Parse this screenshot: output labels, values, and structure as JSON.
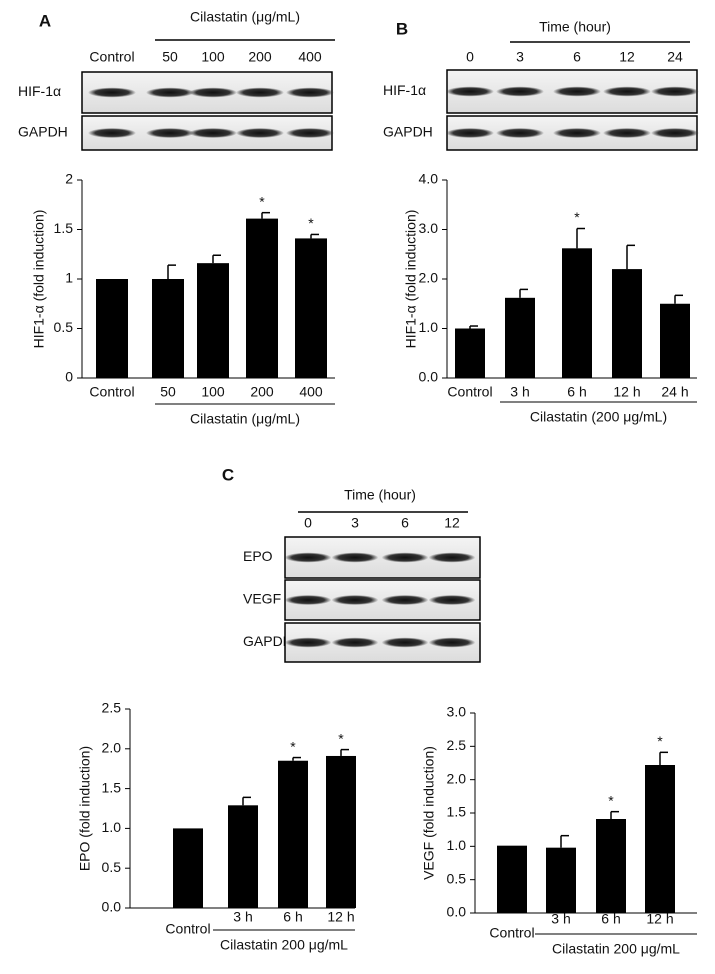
{
  "blots": [
    {
      "panel": "A",
      "header": "Cilastatin (μg/mL)",
      "lanes": [
        "Control",
        "50",
        "100",
        "200",
        "400"
      ],
      "rows": [
        "HIF-1α",
        "GAPDH"
      ]
    },
    {
      "panel": "B",
      "header": "Time (hour)",
      "lanes": [
        "0",
        "3",
        "6",
        "12",
        "24"
      ],
      "rows": [
        "HIF-1α",
        "GAPDH"
      ]
    },
    {
      "panel": "C",
      "header": "Time (hour)",
      "lanes": [
        "0",
        "3",
        "6",
        "12"
      ],
      "rows": [
        "EPO",
        "VEGF",
        "GAPDH"
      ]
    }
  ],
  "chart_data": [
    {
      "type": "bar",
      "ylabel": "HIF1-α (fold induction)",
      "xlabel": "Cilastatin (μg/mL)",
      "categories": [
        "Control",
        "50",
        "100",
        "200",
        "400"
      ],
      "values": [
        1.0,
        1.0,
        1.16,
        1.61,
        1.41
      ],
      "errors": [
        0,
        0.14,
        0.08,
        0.06,
        0.04
      ],
      "markers": [
        null,
        null,
        null,
        "*",
        "*"
      ],
      "color": "#000000",
      "ylim": [
        0,
        2
      ],
      "yticks": [
        0,
        0.5,
        1,
        1.5,
        2
      ]
    },
    {
      "type": "bar",
      "ylabel": "HIF1-α (fold induction)",
      "xlabel": "Cilastatin (200 μg/mL)",
      "categories": [
        "Control",
        "3 h",
        "6 h",
        "12 h",
        "24 h"
      ],
      "values": [
        1.0,
        1.62,
        2.62,
        2.2,
        1.5
      ],
      "errors": [
        0.05,
        0.17,
        0.4,
        0.48,
        0.17
      ],
      "markers": [
        null,
        null,
        "*",
        null,
        null
      ],
      "color": "#000000",
      "ylim": [
        0,
        4
      ],
      "yticks": [
        {
          "value": 0,
          "label": "0.0"
        },
        {
          "value": 1,
          "label": "1.0"
        },
        {
          "value": 2,
          "label": "2.0"
        },
        {
          "value": 3,
          "label": "3.0"
        },
        {
          "value": 4,
          "label": "4.0"
        }
      ]
    },
    {
      "type": "bar",
      "ylabel": "EPO (fold induction)",
      "xlabel": "Cilastatin 200 μg/mL",
      "categories": [
        "Control",
        "3 h",
        "6 h",
        "12 h"
      ],
      "values": [
        1.0,
        1.29,
        1.85,
        1.91
      ],
      "errors": [
        0,
        0.1,
        0.04,
        0.08
      ],
      "markers": [
        null,
        null,
        "*",
        "*"
      ],
      "color": "#000000",
      "ylim": [
        0,
        2.5
      ],
      "yticks": [
        {
          "value": 0,
          "label": "0.0"
        },
        {
          "value": 0.5,
          "label": "0.5"
        },
        {
          "value": 1,
          "label": "1.0"
        },
        {
          "value": 1.5,
          "label": "1.5"
        },
        {
          "value": 2,
          "label": "2.0"
        },
        {
          "value": 2.5,
          "label": "2.5"
        }
      ]
    },
    {
      "type": "bar",
      "ylabel": "VEGF (fold induction)",
      "xlabel": "Cilastatin 200 μg/mL",
      "categories": [
        "Control",
        "3 h",
        "6 h",
        "12 h"
      ],
      "values": [
        1.01,
        0.98,
        1.41,
        2.22
      ],
      "errors": [
        0,
        0.18,
        0.11,
        0.19
      ],
      "markers": [
        null,
        null,
        "*",
        "*"
      ],
      "color": "#000000",
      "ylim": [
        0,
        3
      ],
      "yticks": [
        {
          "value": 0,
          "label": "0.0"
        },
        {
          "value": 0.5,
          "label": "0.5"
        },
        {
          "value": 1,
          "label": "1.0"
        },
        {
          "value": 1.5,
          "label": "1.5"
        },
        {
          "value": 2,
          "label": "2.0"
        },
        {
          "value": 2.5,
          "label": "2.5"
        },
        {
          "value": 3,
          "label": "3.0"
        }
      ]
    }
  ]
}
